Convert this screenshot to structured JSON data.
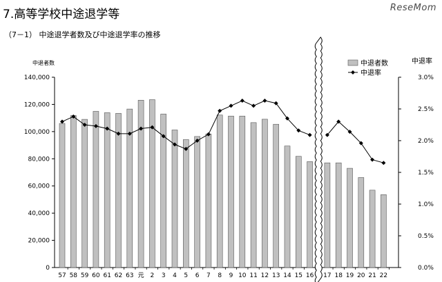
{
  "page": {
    "title": "7.高等学校中途退学等",
    "subtitle": "（7－1） 中途退学者数及び中途退学率の推移",
    "brand": "ReseMom"
  },
  "chart_data": {
    "type": "bar",
    "categories": [
      "57",
      "58",
      "59",
      "60",
      "61",
      "62",
      "63",
      "元",
      "2",
      "3",
      "4",
      "5",
      "6",
      "7",
      "8",
      "9",
      "10",
      "11",
      "12",
      "13",
      "14",
      "15",
      "16",
      "17",
      "18",
      "19",
      "20",
      "21",
      "22"
    ],
    "axis_break_after": "16",
    "ylabel_left": "中退者数",
    "ylabel_right": "中退率",
    "ylim_left": [
      0,
      140000
    ],
    "ylim_right": [
      0.0,
      3.0
    ],
    "yticks_left": [
      "0",
      "20,000",
      "40,000",
      "60,000",
      "80,000",
      "100,000",
      "120,000",
      "140,000"
    ],
    "yticks_right": [
      "0.0%",
      "0.5%",
      "1.0%",
      "1.5%",
      "2.0%",
      "2.5%",
      "3.0%"
    ],
    "grid": false,
    "legend_position": "top-right",
    "series": [
      {
        "name": "中退者数",
        "type": "bar",
        "axis": "left",
        "color": "#c0c0c0",
        "values": [
          106000,
          111800,
          109000,
          114900,
          113900,
          113400,
          116600,
          123100,
          123500,
          112900,
          101200,
          94100,
          96400,
          98200,
          112200,
          111400,
          111400,
          106600,
          109100,
          105400,
          89400,
          81800,
          77900,
          77000,
          77000,
          73000,
          66200,
          56900,
          53600
        ]
      },
      {
        "name": "中退率",
        "type": "line",
        "axis": "right",
        "color": "#000000",
        "marker": "diamond",
        "values": [
          2.3,
          2.38,
          2.25,
          2.23,
          2.19,
          2.11,
          2.11,
          2.19,
          2.21,
          2.07,
          1.94,
          1.87,
          2.0,
          2.1,
          2.47,
          2.55,
          2.63,
          2.55,
          2.63,
          2.59,
          2.35,
          2.16,
          2.09,
          2.09,
          2.3,
          2.14,
          1.96,
          1.7,
          1.65
        ]
      }
    ]
  }
}
